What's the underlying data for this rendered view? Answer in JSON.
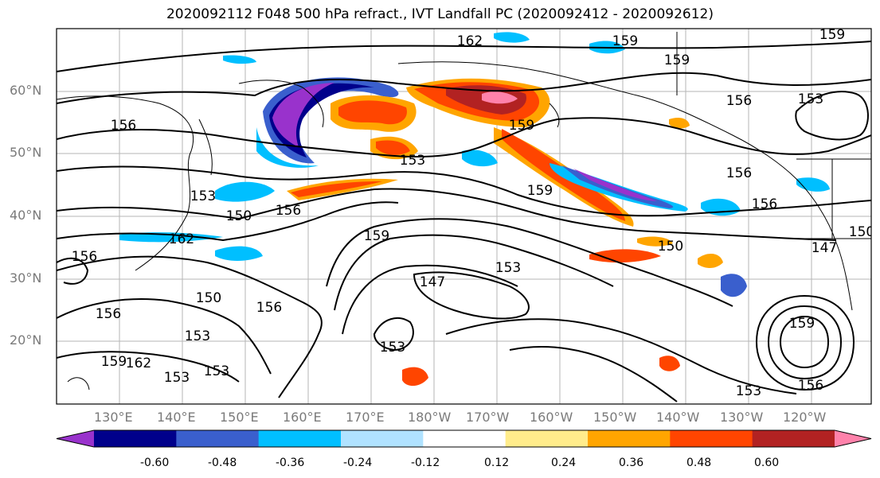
{
  "title": "2020092112 F048 500 hPa refract., IVT Landfall PC (2020092412 - 2020092612)",
  "lat_labels": [
    "60°N",
    "50°N",
    "40°N",
    "30°N",
    "20°N"
  ],
  "lon_labels": [
    "130°E",
    "140°E",
    "150°E",
    "160°E",
    "170°E",
    "180°W",
    "170°W",
    "160°W",
    "150°W",
    "140°W",
    "130°W",
    "120°W"
  ],
  "contour_labels": [
    "162",
    "159",
    "159",
    "159",
    "156",
    "156",
    "159",
    "153",
    "153",
    "150",
    "156",
    "159",
    "162",
    "159",
    "153",
    "156",
    "156",
    "150",
    "153",
    "147",
    "150",
    "156",
    "153",
    "159",
    "162",
    "153",
    "153",
    "156",
    "153",
    "159",
    "156",
    "153",
    "156",
    "147",
    "150"
  ],
  "colorbar": {
    "ticks": [
      "-0.60",
      "-0.48",
      "-0.36",
      "-0.24",
      "-0.12",
      "0.12",
      "0.24",
      "0.36",
      "0.48",
      "0.60"
    ],
    "colors": [
      "#9932cc",
      "#00008b",
      "#3a5fcd",
      "#00bfff",
      "#b0e2ff",
      "#ffffff",
      "#ffec8b",
      "#ffa500",
      "#ff4500",
      "#b22222",
      "#ff82ab"
    ]
  }
}
